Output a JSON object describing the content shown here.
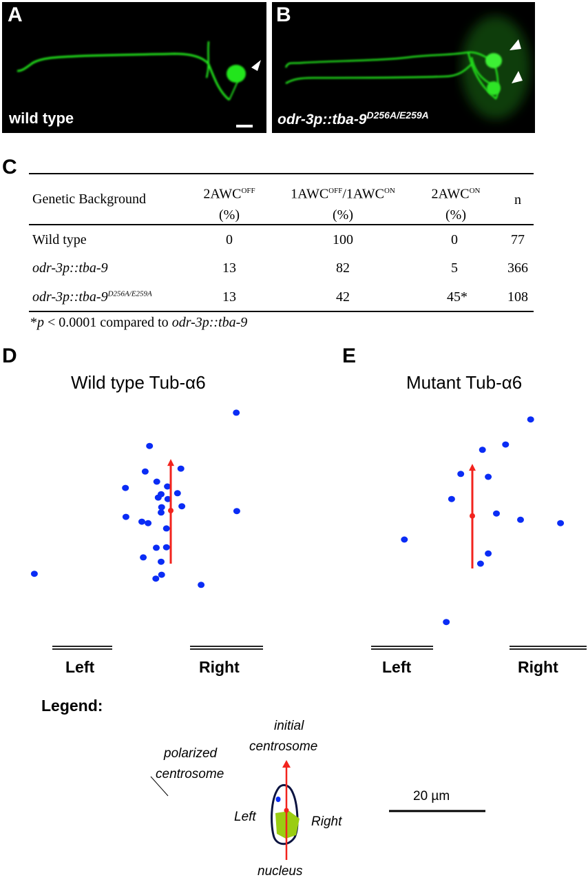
{
  "panels": {
    "A": {
      "letter": "A",
      "caption": "wild type"
    },
    "B": {
      "letter": "B",
      "caption_main": "odr-3p::tba-9",
      "caption_sup": "D256A/E259A"
    },
    "C": {
      "letter": "C"
    },
    "D": {
      "letter": "D",
      "title": "Wild type Tub-α6",
      "left": "Left",
      "right": "Right"
    },
    "E": {
      "letter": "E",
      "title": "Mutant Tub-α6",
      "left": "Left",
      "right": "Right"
    }
  },
  "table": {
    "headers": {
      "genetic_background": "Genetic Background",
      "col1_main": "2AWC",
      "col1_sup": "OFF",
      "col1_unit": "(%)",
      "col2_a": "1AWC",
      "col2_a_sup": "OFF",
      "col2_b": "/1AWC",
      "col2_b_sup": "ON",
      "col2_unit": "(%)",
      "col3_main": "2AWC",
      "col3_sup": "ON",
      "col3_unit": "(%)",
      "n": "n"
    },
    "rows": [
      {
        "background": "Wild type",
        "sup": "",
        "off2": "0",
        "mixed": "100",
        "on2": "0",
        "n": "77"
      },
      {
        "background": "odr-3p::tba-9",
        "sup": "",
        "off2": "13",
        "mixed": "82",
        "on2": "5",
        "n": "366"
      },
      {
        "background": "odr-3p::tba-9",
        "sup": "D256A/E259A",
        "off2": "13",
        "mixed": "42",
        "on2": "45*",
        "n": "108"
      }
    ],
    "footnote_a": "*",
    "footnote_p": "p",
    "footnote_b": " < 0.0001 compared to ",
    "footnote_c": "odr-3p::tba-9"
  },
  "legend": {
    "title": "Legend:",
    "initial": "initial",
    "initial_centrosome": "centrosome",
    "polarized": "polarized",
    "polarized_centrosome": "centrosome",
    "left": "Left",
    "right": "Right",
    "nucleus": "nucleus",
    "scale_bar": "20 µm"
  },
  "colors": {
    "points": "#0a2cf5",
    "arrow": "#f2231d",
    "nucleus": "#9acd12",
    "cell_outline": "#0b1340",
    "neuron": "#22e51c"
  },
  "chart_data": [
    {
      "type": "scatter",
      "title": "Wild type Tub-α6",
      "units": "µm relative to initial centrosome position (x: left(-)/right(+), y: up)",
      "arrow": {
        "from": [
          0,
          0
        ],
        "to": [
          0,
          21.7
        ],
        "mid": [
          0,
          11.0
        ]
      },
      "points": [
        [
          13.6,
          31.3
        ],
        [
          -4.4,
          24.4
        ],
        [
          2.1,
          19.7
        ],
        [
          -5.3,
          19.1
        ],
        [
          -2.9,
          17.0
        ],
        [
          -9.4,
          15.7
        ],
        [
          -0.7,
          16.0
        ],
        [
          -2.0,
          14.4
        ],
        [
          -2.6,
          13.7
        ],
        [
          1.4,
          14.6
        ],
        [
          -0.6,
          13.4
        ],
        [
          2.3,
          11.9
        ],
        [
          -1.9,
          11.7
        ],
        [
          13.7,
          10.9
        ],
        [
          -2.0,
          10.6
        ],
        [
          -9.3,
          9.7
        ],
        [
          -6.0,
          8.7
        ],
        [
          -4.7,
          8.4
        ],
        [
          -0.9,
          7.3
        ],
        [
          -3.0,
          3.3
        ],
        [
          -0.9,
          3.4
        ],
        [
          -5.7,
          1.3
        ],
        [
          -2.0,
          0.4
        ],
        [
          -28.3,
          -2.1
        ],
        [
          -1.9,
          -2.3
        ],
        [
          -3.1,
          -3.1
        ],
        [
          6.3,
          -4.4
        ]
      ]
    },
    {
      "type": "scatter",
      "title": "Mutant Tub-α6",
      "units": "µm relative to initial centrosome position (x: left(-)/right(+), y: up)",
      "arrow": {
        "from": [
          0,
          0
        ],
        "to": [
          0,
          21.7
        ],
        "mid": [
          0,
          10.9
        ]
      },
      "points": [
        [
          12.1,
          30.9
        ],
        [
          6.9,
          25.7
        ],
        [
          2.1,
          24.6
        ],
        [
          -2.4,
          19.6
        ],
        [
          3.3,
          19.0
        ],
        [
          -4.3,
          14.4
        ],
        [
          5.0,
          11.4
        ],
        [
          10.0,
          10.1
        ],
        [
          18.3,
          9.4
        ],
        [
          -14.1,
          6.0
        ],
        [
          3.3,
          3.1
        ],
        [
          1.7,
          1.0
        ],
        [
          -5.4,
          -11.1
        ]
      ]
    }
  ]
}
